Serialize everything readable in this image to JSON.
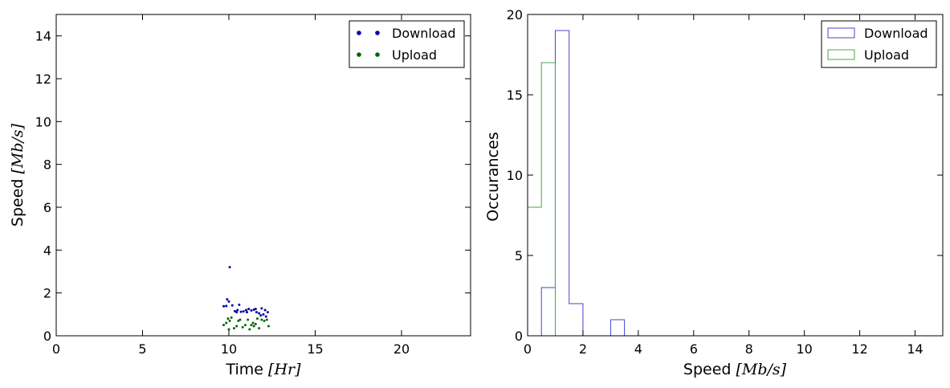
{
  "chart_data": [
    {
      "type": "scatter",
      "title": "",
      "xlabel_main": "Time",
      "xlabel_unit": "[Hr]",
      "ylabel_main": "Speed",
      "ylabel_unit": "[Mb/s]",
      "xlim": [
        0,
        24
      ],
      "ylim": [
        0,
        15
      ],
      "xticks": [
        0,
        5,
        10,
        15,
        20
      ],
      "yticks": [
        0,
        2,
        4,
        6,
        8,
        10,
        12,
        14
      ],
      "grid": false,
      "legend_position": "top-right",
      "series": [
        {
          "name": "Download",
          "color": "#0000aa",
          "points": [
            [
              9.7,
              1.38
            ],
            [
              9.85,
              1.39
            ],
            [
              10.0,
              1.6
            ],
            [
              10.05,
              3.2
            ],
            [
              10.2,
              1.42
            ],
            [
              10.35,
              1.15
            ],
            [
              10.5,
              1.2
            ],
            [
              10.6,
              1.45
            ],
            [
              10.7,
              1.12
            ],
            [
              10.85,
              1.14
            ],
            [
              11.0,
              1.2
            ],
            [
              11.15,
              1.25
            ],
            [
              11.3,
              1.18
            ],
            [
              11.45,
              1.22
            ],
            [
              11.6,
              1.1
            ],
            [
              11.75,
              1.05
            ],
            [
              11.9,
              1.28
            ],
            [
              12.0,
              1.0
            ],
            [
              12.1,
              1.2
            ],
            [
              12.25,
              1.1
            ],
            [
              9.9,
              1.7
            ],
            [
              10.45,
              1.1
            ],
            [
              11.05,
              1.1
            ],
            [
              11.55,
              1.25
            ],
            [
              11.85,
              0.95
            ],
            [
              12.15,
              0.9
            ]
          ]
        },
        {
          "name": "Upload",
          "color": "#006600",
          "points": [
            [
              9.7,
              0.5
            ],
            [
              9.85,
              0.6
            ],
            [
              9.95,
              0.8
            ],
            [
              10.05,
              0.7
            ],
            [
              10.15,
              0.85
            ],
            [
              10.3,
              0.35
            ],
            [
              10.45,
              0.45
            ],
            [
              10.55,
              0.7
            ],
            [
              10.65,
              0.75
            ],
            [
              10.8,
              0.4
            ],
            [
              10.95,
              0.5
            ],
            [
              11.1,
              0.75
            ],
            [
              11.2,
              0.3
            ],
            [
              11.3,
              0.5
            ],
            [
              11.4,
              0.6
            ],
            [
              11.55,
              0.55
            ],
            [
              11.65,
              0.8
            ],
            [
              11.75,
              0.35
            ],
            [
              11.9,
              0.75
            ],
            [
              12.05,
              0.7
            ],
            [
              12.2,
              0.75
            ],
            [
              12.3,
              0.45
            ],
            [
              10.0,
              0.3
            ],
            [
              11.45,
              0.45
            ]
          ]
        }
      ]
    },
    {
      "type": "histogram",
      "title": "",
      "xlabel_main": "Speed",
      "xlabel_unit": "[Mb/s]",
      "ylabel": "Occurances",
      "xlim": [
        0,
        15
      ],
      "ylim": [
        0,
        20
      ],
      "xticks": [
        0,
        2,
        4,
        6,
        8,
        10,
        12,
        14
      ],
      "yticks": [
        0,
        5,
        10,
        15,
        20
      ],
      "grid": false,
      "legend_position": "top-right",
      "bin_width": 0.5,
      "bin_edges": [
        0,
        0.5,
        1,
        1.5,
        2,
        2.5,
        3,
        3.5,
        4,
        4.5,
        5,
        5.5,
        6,
        6.5,
        7,
        7.5,
        8,
        8.5,
        9,
        9.5,
        10,
        10.5,
        11,
        11.5,
        12,
        12.5,
        13,
        13.5,
        14,
        14.5,
        15
      ],
      "series": [
        {
          "name": "Download",
          "color": "#4444cc",
          "counts": [
            0,
            3,
            19,
            2,
            0,
            0,
            1,
            0,
            0,
            0,
            0,
            0,
            0,
            0,
            0,
            0,
            0,
            0,
            0,
            0,
            0,
            0,
            0,
            0,
            0,
            0,
            0,
            0,
            0,
            0
          ]
        },
        {
          "name": "Upload",
          "color": "#44aa44",
          "counts": [
            8,
            17,
            0,
            0,
            0,
            0,
            0,
            0,
            0,
            0,
            0,
            0,
            0,
            0,
            0,
            0,
            0,
            0,
            0,
            0,
            0,
            0,
            0,
            0,
            0,
            0,
            0,
            0,
            0,
            0
          ]
        }
      ]
    }
  ]
}
